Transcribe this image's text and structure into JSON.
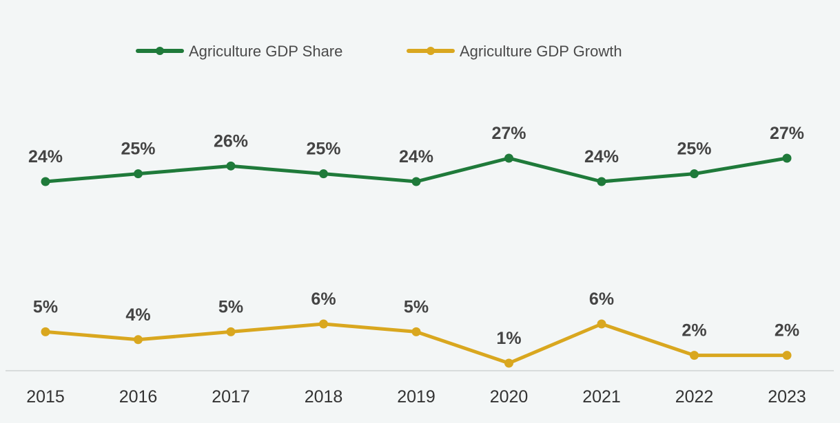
{
  "chart_data": {
    "type": "line",
    "title": "",
    "xlabel": "",
    "ylabel": "",
    "categories": [
      "2015",
      "2016",
      "2017",
      "2018",
      "2019",
      "2020",
      "2021",
      "2022",
      "2023"
    ],
    "series": [
      {
        "name": "Agriculture GDP Share",
        "color": "#1f7a3a",
        "values": [
          24,
          25,
          26,
          25,
          24,
          27,
          24,
          25,
          27
        ],
        "labels": [
          "24%",
          "25%",
          "26%",
          "25%",
          "24%",
          "27%",
          "24%",
          "25%",
          "27%"
        ]
      },
      {
        "name": "Agriculture GDP Growth",
        "color": "#d9a71f",
        "values": [
          5,
          4,
          5,
          6,
          5,
          1,
          6,
          2,
          2
        ],
        "labels": [
          "5%",
          "4%",
          "5%",
          "6%",
          "5%",
          "1%",
          "6%",
          "2%",
          "2%"
        ]
      }
    ],
    "legend": "top-center",
    "grid": false
  }
}
